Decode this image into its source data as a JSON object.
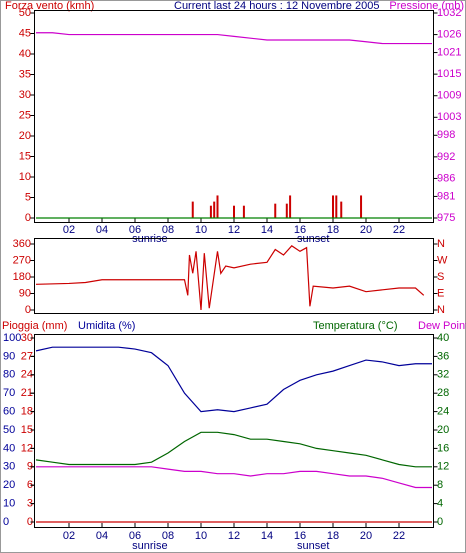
{
  "chart_data": [
    {
      "type": "combo",
      "ylabel": "Forza vento (kmh)",
      "title": "Current last 24 hours : 12 Novembre 2005",
      "y2label": "Pressione (mb)",
      "title_color": "#000080",
      "ylim": [
        0,
        50
      ],
      "yticks": [
        0,
        5,
        10,
        15,
        20,
        25,
        30,
        35,
        40,
        45,
        50
      ],
      "ycolor": "#cc0000",
      "y2lim": [
        975,
        1032
      ],
      "y2ticks": [
        975,
        981,
        986,
        992,
        998,
        1003,
        1009,
        1015,
        1021,
        1026,
        1032
      ],
      "y2color": "#cc00cc",
      "xlim": [
        0,
        24
      ],
      "xticks": [
        {
          "value": 2,
          "label": "02"
        },
        {
          "value": 4,
          "label": "04"
        },
        {
          "value": 6,
          "label": "06"
        },
        {
          "value": 8,
          "label": "08"
        },
        {
          "value": 10,
          "label": "10"
        },
        {
          "value": 12,
          "label": "12"
        },
        {
          "value": 14,
          "label": "14"
        },
        {
          "value": 16,
          "label": "16"
        },
        {
          "value": 18,
          "label": "18"
        },
        {
          "value": 20,
          "label": "20"
        },
        {
          "value": 22,
          "label": "22"
        }
      ],
      "annotations": [
        {
          "text": "sunrise",
          "x": 6.9
        },
        {
          "text": "sunset",
          "x": 16.8
        }
      ],
      "series": [
        {
          "type": "bar",
          "color": "#cc0000",
          "x": [
            9.5,
            10.6,
            10.8,
            11.0,
            12.0,
            12.6,
            14.5,
            15.2,
            15.4,
            18.0,
            18.2,
            18.5,
            19.7
          ],
          "values": [
            4,
            3,
            4,
            5.5,
            3,
            3,
            3.5,
            3.5,
            5.5,
            5.5,
            5.5,
            4,
            5.5
          ]
        },
        {
          "type": "line",
          "color": "#008000",
          "x": [
            0,
            24
          ],
          "values": [
            0,
            0
          ]
        },
        {
          "type": "line",
          "color": "#cc00cc",
          "axis": "y2",
          "x": [
            0,
            1,
            2,
            3,
            4,
            5,
            6,
            7,
            8,
            9,
            10,
            11,
            12,
            13,
            14,
            15,
            16,
            17,
            18,
            19,
            20,
            21,
            22,
            23,
            24
          ],
          "values": [
            1026.5,
            1026.5,
            1026,
            1026,
            1026,
            1026,
            1026,
            1026,
            1026,
            1026,
            1026,
            1026,
            1025.5,
            1025,
            1024.5,
            1024.5,
            1024.5,
            1024.5,
            1024.5,
            1024.5,
            1024,
            1023.5,
            1023.5,
            1023.5,
            1023.5
          ]
        }
      ]
    },
    {
      "type": "combo",
      "ylim": [
        0,
        360
      ],
      "yticks": [
        0,
        90,
        180,
        270,
        360
      ],
      "ycolor": "#cc0000",
      "y2lim": [
        0,
        360
      ],
      "y2ticks": [
        {
          "value": 0,
          "label": "N"
        },
        {
          "value": 90,
          "label": "E"
        },
        {
          "value": 180,
          "label": "S"
        },
        {
          "value": 270,
          "label": "W"
        },
        {
          "value": 360,
          "label": "N"
        }
      ],
      "y2color": "#cc0000",
      "xlim": [
        0,
        24
      ],
      "series": [
        {
          "type": "line",
          "color": "#cc0000",
          "x": [
            0,
            2,
            3,
            4,
            9,
            9.2,
            9.3,
            9.5,
            9.7,
            10,
            10.2,
            10.5,
            11,
            11.2,
            11.5,
            12,
            13,
            14,
            14.5,
            15,
            15.5,
            16,
            16.4,
            16.6,
            16.8,
            18,
            19,
            20,
            21,
            22,
            23,
            23.5
          ],
          "values": [
            140,
            145,
            150,
            165,
            165,
            80,
            300,
            200,
            320,
            0,
            310,
            10,
            320,
            200,
            240,
            230,
            250,
            260,
            330,
            300,
            350,
            320,
            340,
            20,
            130,
            120,
            130,
            100,
            110,
            120,
            120,
            80
          ]
        }
      ]
    },
    {
      "type": "combo",
      "y3label": "Pioggia (mm)",
      "ylabel": "Umidita (%)",
      "y2label": "Temperatura (°C)",
      "ylim": [
        0,
        100
      ],
      "yticks": [
        0,
        10,
        20,
        30,
        40,
        50,
        60,
        70,
        80,
        90,
        100
      ],
      "ycolor": "#000099",
      "y3lim": [
        0,
        30
      ],
      "y3ticks": [
        0,
        3,
        6,
        9,
        12,
        15,
        18,
        21,
        24,
        27,
        30
      ],
      "y3color": "#cc0000",
      "y2lim": [
        0,
        40
      ],
      "y2ticks": [
        0,
        4,
        8,
        12,
        16,
        20,
        24,
        28,
        32,
        36,
        40
      ],
      "y2color": "#006600",
      "xlim": [
        0,
        24
      ],
      "xticks": [
        {
          "value": 2,
          "label": "02"
        },
        {
          "value": 4,
          "label": "04"
        },
        {
          "value": 6,
          "label": "06"
        },
        {
          "value": 8,
          "label": "08"
        },
        {
          "value": 10,
          "label": "10"
        },
        {
          "value": 12,
          "label": "12"
        },
        {
          "value": 14,
          "label": "14"
        },
        {
          "value": 16,
          "label": "16"
        },
        {
          "value": 18,
          "label": "18"
        },
        {
          "value": 20,
          "label": "20"
        },
        {
          "value": 22,
          "label": "22"
        }
      ],
      "annotations": [
        {
          "text": "sunrise",
          "x": 6.9
        },
        {
          "text": "sunset",
          "x": 16.8
        }
      ],
      "series": [
        {
          "type": "line",
          "color": "#cc0000",
          "axis": "y3",
          "x": [
            0,
            24
          ],
          "values": [
            0,
            0
          ]
        },
        {
          "type": "line",
          "color": "#000099",
          "x": [
            0,
            1,
            2,
            3,
            4,
            5,
            6,
            7,
            8,
            9,
            10,
            11,
            12,
            13,
            14,
            15,
            16,
            17,
            18,
            19,
            20,
            21,
            22,
            23,
            24
          ],
          "values": [
            93,
            95,
            95,
            95,
            95,
            95,
            94,
            92,
            85,
            70,
            60,
            61,
            60,
            62,
            64,
            72,
            77,
            80,
            82,
            85,
            88,
            87,
            85,
            86,
            86
          ]
        },
        {
          "type": "line",
          "color": "#006600",
          "axis": "y2",
          "x": [
            0,
            1,
            2,
            3,
            4,
            5,
            6,
            7,
            8,
            9,
            10,
            11,
            12,
            13,
            14,
            15,
            16,
            17,
            18,
            19,
            20,
            21,
            22,
            23,
            24
          ],
          "values": [
            13.5,
            13,
            12.5,
            12.5,
            12.5,
            12.5,
            12.5,
            13,
            15,
            17.5,
            19.5,
            19.5,
            19,
            18,
            18,
            17.5,
            17,
            16,
            15.5,
            15,
            14.5,
            13.5,
            12.5,
            12,
            12
          ]
        },
        {
          "type": "line",
          "name": "Dew Point",
          "color": "#cc00cc",
          "axis": "y2",
          "x": [
            0,
            1,
            2,
            3,
            4,
            5,
            6,
            7,
            8,
            9,
            10,
            11,
            12,
            13,
            14,
            15,
            16,
            17,
            18,
            19,
            20,
            21,
            22,
            23,
            24
          ],
          "values": [
            12,
            12,
            12,
            12,
            12,
            12,
            12,
            12,
            11.5,
            11,
            11,
            10.5,
            10.5,
            10,
            10.5,
            10.5,
            11,
            11,
            10.5,
            10,
            10,
            9.5,
            8.5,
            7.5,
            7.5
          ]
        }
      ]
    }
  ]
}
